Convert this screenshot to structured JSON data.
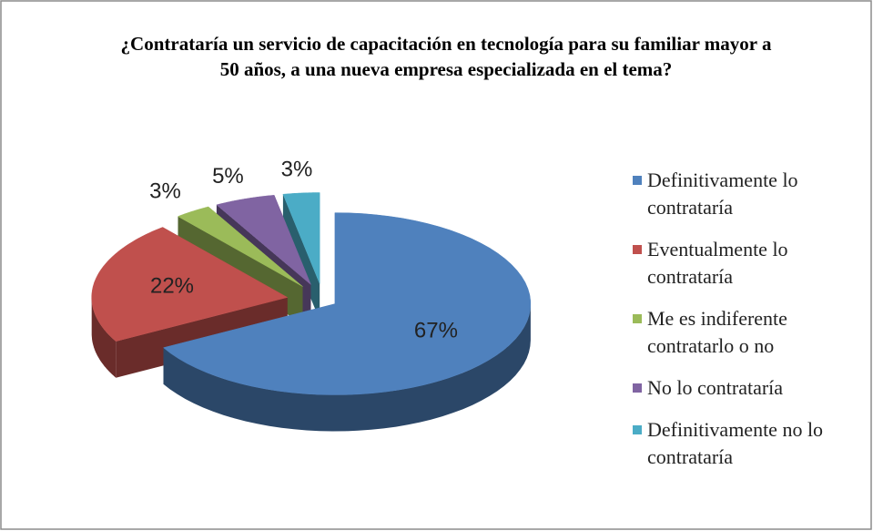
{
  "chart_data": {
    "type": "pie",
    "title": "¿Contrataría un servicio de capacitación en tecnología para su familiar mayor a 50 años, a una nueva empresa especializada en el tema?",
    "categories": [
      "Definitivamente lo contrataría",
      "Eventualmente lo contrataría",
      "Me es indiferente contratarlo o no",
      "No lo contrataría",
      "Definitivamente no lo contrataría"
    ],
    "values": [
      67,
      22,
      3,
      5,
      3
    ],
    "value_labels": [
      "67%",
      "22%",
      "3%",
      "5%",
      "3%"
    ],
    "colors": [
      "#4f81bd",
      "#c0504d",
      "#9bbb59",
      "#8064a2",
      "#4bacc6"
    ],
    "legend": "right"
  }
}
